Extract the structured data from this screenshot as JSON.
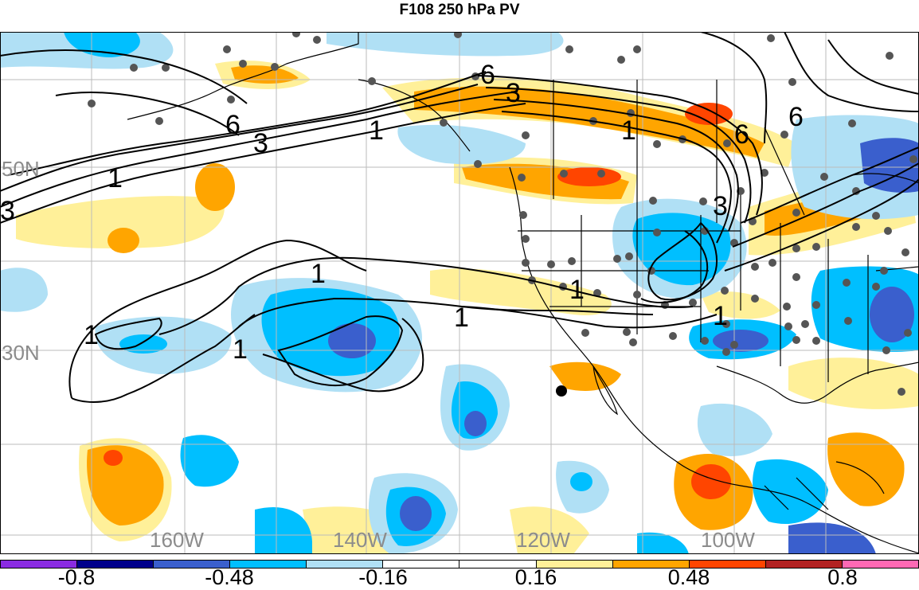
{
  "title": "F108 250 hPa PV",
  "lat_labels": [
    "50N",
    "30N"
  ],
  "lon_labels": [
    "160W",
    "140W",
    "120W",
    "100W"
  ],
  "contour_labels": [
    "6",
    "3",
    "1",
    "1",
    "3",
    "6",
    "3",
    "1",
    "1",
    "1",
    "1",
    "1",
    "1",
    "1",
    "6",
    "6",
    "3",
    "1"
  ],
  "colorbar": {
    "colors": [
      "#8a2be2",
      "#00008b",
      "#3a5fcd",
      "#00bfff",
      "#b0e0f5",
      "#ffffff",
      "#ffffff",
      "#fff099",
      "#ffa500",
      "#ff4500",
      "#b22222",
      "#ff69b4"
    ],
    "labels": [
      "-0.8",
      "-0.48",
      "-0.16",
      "0.16",
      "0.48",
      "0.8"
    ]
  }
}
